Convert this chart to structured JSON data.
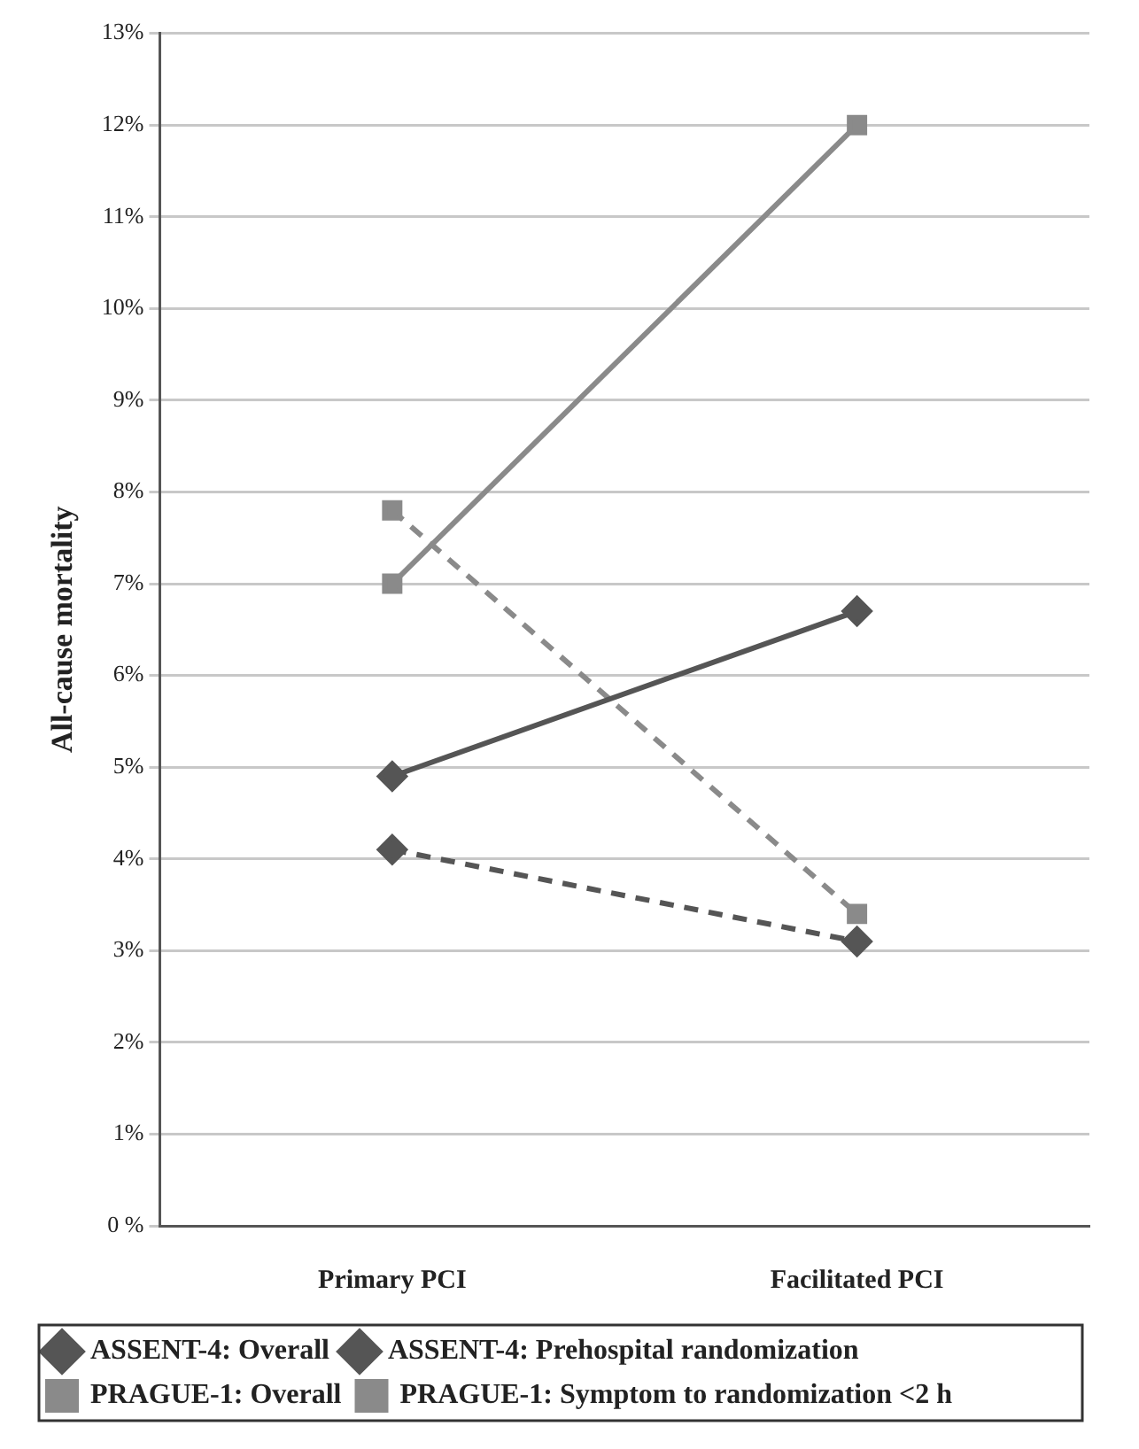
{
  "chart_data": {
    "type": "line",
    "ylabel": "All-cause mortality",
    "categories": [
      "Primary PCI",
      "Facilitated PCI"
    ],
    "series": [
      {
        "name": "ASSENT-4: Overall",
        "color": "#555555",
        "values": [
          4.9,
          6.7
        ],
        "marker": "diamond",
        "line_style": "solid"
      },
      {
        "name": "ASSENT-4: Prehospital randomization",
        "color": "#555555",
        "values": [
          4.1,
          3.1
        ],
        "marker": "diamond",
        "line_style": "dashed"
      },
      {
        "name": "PRAGUE-1: Overall",
        "color": "#8a8a8a",
        "values": [
          7.0,
          12.0
        ],
        "marker": "square",
        "line_style": "solid"
      },
      {
        "name": "PRAGUE-1: Symptom to randomization <2 h",
        "color": "#8a8a8a",
        "values": [
          7.8,
          3.4
        ],
        "marker": "square",
        "line_style": "dashed"
      }
    ],
    "ylim": [
      0,
      13
    ],
    "yticks": [
      {
        "value": 0,
        "label": "0 %"
      },
      {
        "value": 1,
        "label": "1%"
      },
      {
        "value": 2,
        "label": "2%"
      },
      {
        "value": 3,
        "label": "3%"
      },
      {
        "value": 4,
        "label": "4%"
      },
      {
        "value": 5,
        "label": "5%"
      },
      {
        "value": 6,
        "label": "6%"
      },
      {
        "value": 7,
        "label": "7%"
      },
      {
        "value": 8,
        "label": "8%"
      },
      {
        "value": 9,
        "label": "9%"
      },
      {
        "value": 10,
        "label": "10%"
      },
      {
        "value": 11,
        "label": "11%"
      },
      {
        "value": 12,
        "label": "12%"
      },
      {
        "value": 13,
        "label": "13%"
      }
    ],
    "grid": "y",
    "legend": "bottom"
  }
}
